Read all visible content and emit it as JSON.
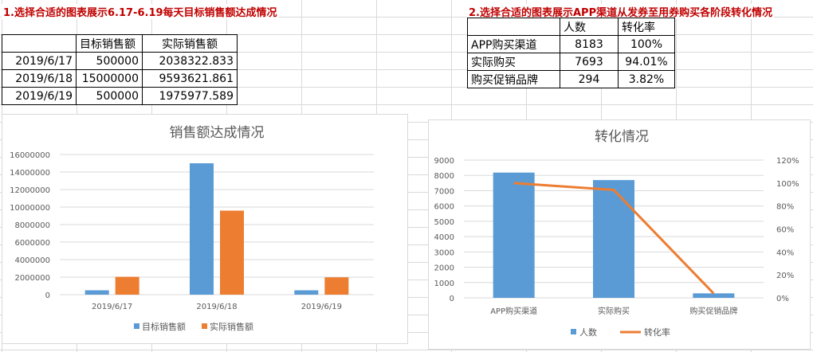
{
  "headings": {
    "h1": "1.选择合适的图表展示6.17-6.19每天目标销售额达成情况",
    "h2": "2.选择合适的图表展示APP渠道从发券至用券购买各阶段转化情况"
  },
  "table1": {
    "headers": [
      "",
      "目标销售额",
      "实际销售额"
    ],
    "rows": [
      [
        "2019/6/17",
        "500000",
        "2038322.833"
      ],
      [
        "2019/6/18",
        "15000000",
        "9593621.861"
      ],
      [
        "2019/6/19",
        "500000",
        "1975977.589"
      ]
    ]
  },
  "table2": {
    "headers": [
      "",
      "人数",
      "转化率"
    ],
    "rows": [
      [
        "APP购买渠道",
        "8183",
        "100%"
      ],
      [
        "实际购买",
        "7693",
        "94.01%"
      ],
      [
        "购买促销品牌",
        "294",
        "3.82%"
      ]
    ]
  },
  "chart_data": [
    {
      "type": "bar",
      "title": "销售额达成情况",
      "categories": [
        "2019/6/17",
        "2019/6/18",
        "2019/6/19"
      ],
      "series": [
        {
          "name": "目标销售额",
          "values": [
            500000,
            15000000,
            500000
          ],
          "color": "#5b9bd5"
        },
        {
          "name": "实际销售额",
          "values": [
            2038322.833,
            9593621.861,
            1975977.589
          ],
          "color": "#ed7d31"
        }
      ],
      "ylim": [
        0,
        16000000
      ],
      "yticks": [
        "0",
        "2000000",
        "4000000",
        "6000000",
        "8000000",
        "10000000",
        "12000000",
        "14000000",
        "16000000"
      ],
      "legend": "bottom"
    },
    {
      "type": "bar",
      "title": "转化情况",
      "categories": [
        "APP购买渠道",
        "实际购买",
        "购买促销品牌"
      ],
      "series": [
        {
          "name": "人数",
          "type": "bar",
          "values": [
            8183,
            7693,
            294
          ],
          "color": "#5b9bd5",
          "axis": "left"
        },
        {
          "name": "转化率",
          "type": "line",
          "values": [
            1.0,
            0.9401,
            0.0382
          ],
          "color": "#ed7d31",
          "axis": "right"
        }
      ],
      "ylim": [
        0,
        9000
      ],
      "y2lim": [
        0,
        1.2
      ],
      "yticks": [
        "0",
        "1000",
        "2000",
        "3000",
        "4000",
        "5000",
        "6000",
        "7000",
        "8000",
        "9000"
      ],
      "y2ticks": [
        "0%",
        "20%",
        "40%",
        "60%",
        "80%",
        "100%",
        "120%"
      ],
      "legend": "bottom"
    }
  ]
}
